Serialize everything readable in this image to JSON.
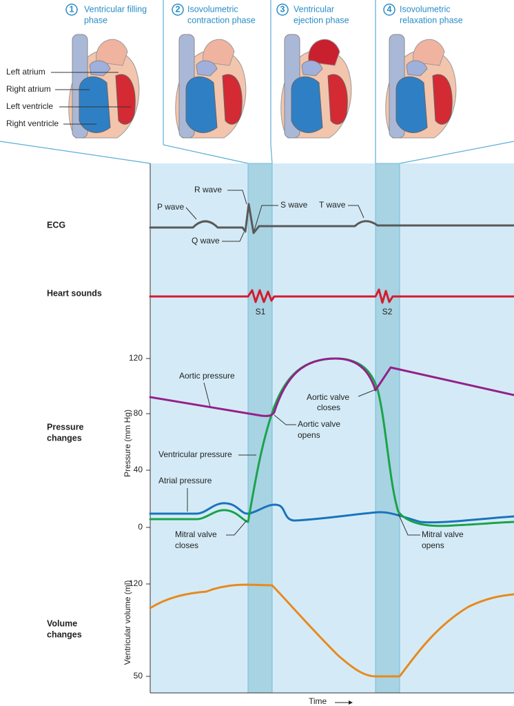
{
  "phases": [
    {
      "number": "1",
      "lines": [
        "Ventricular filling",
        "phase"
      ]
    },
    {
      "number": "2",
      "lines": [
        "Isovolumetric",
        "contraction phase"
      ]
    },
    {
      "number": "3",
      "lines": [
        "Ventricular",
        "ejection phase"
      ]
    },
    {
      "number": "4",
      "lines": [
        "Isovolumetric",
        "relaxation phase"
      ]
    }
  ],
  "heart_labels": [
    "Left atrium",
    "Right atrium",
    "Left ventricle",
    "Right ventricle"
  ],
  "rows": {
    "ecg": "ECG",
    "heart_sounds": "Heart sounds",
    "pressure": [
      "Pressure",
      "changes"
    ],
    "volume": [
      "Volume",
      "changes"
    ]
  },
  "ecg_labels": {
    "r": "R wave",
    "p": "P wave",
    "s": "S wave",
    "t": "T wave",
    "q": "Q wave"
  },
  "sound_labels": [
    "S1",
    "S2"
  ],
  "pressure_axis": {
    "label": "Pressure (mm Hg)",
    "ticks": [
      "120",
      "80",
      "40",
      "0"
    ]
  },
  "pressure_labels": {
    "aortic": "Aortic pressure",
    "aortic_closes": [
      "Aortic valve",
      "closes"
    ],
    "aortic_opens": [
      "Aortic valve",
      "opens"
    ],
    "ventricular": "Ventricular pressure",
    "atrial": "Atrial pressure",
    "mitral_closes": [
      "Mitral valve",
      "closes"
    ],
    "mitral_opens": [
      "Mitral valve",
      "opens"
    ]
  },
  "volume_axis": {
    "label": "Ventricular volume (ml)",
    "ticks": [
      "120",
      "50"
    ]
  },
  "time_label": "Time"
}
